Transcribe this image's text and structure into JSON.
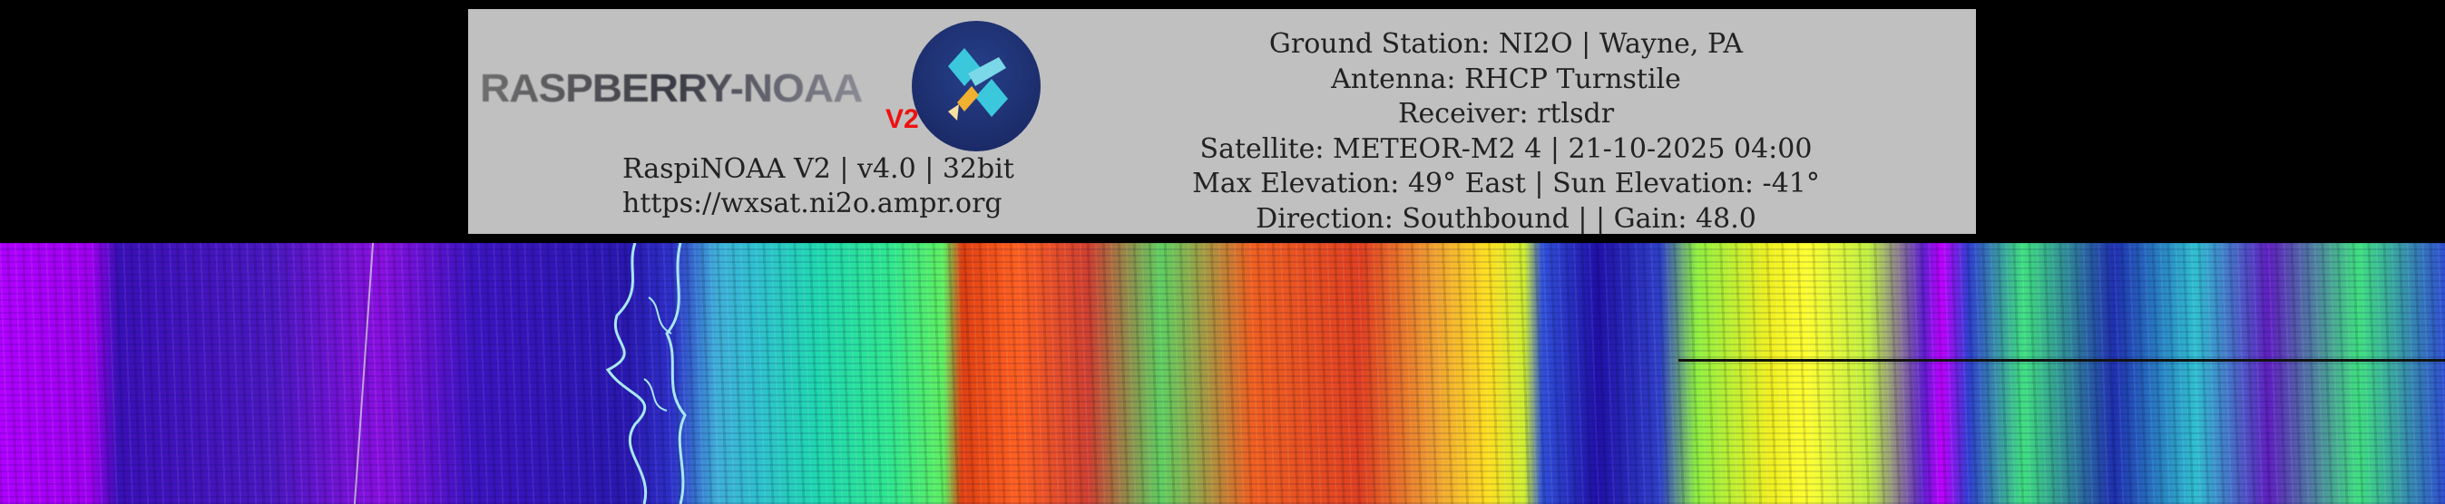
{
  "logo": {
    "text": "RASPBERRY-NOAA",
    "badge": "V2"
  },
  "software": {
    "version_line": "RaspiNOAA V2 | v4.0 | 32bit",
    "url": "https://wxsat.ni2o.ampr.org"
  },
  "pass_info": {
    "ground_station": "Ground Station: NI2O | Wayne, PA",
    "antenna": "Antenna: RHCP Turnstile",
    "receiver": "Receiver: rtlsdr",
    "satellite": "Satellite: METEOR-M2 4 | 21-10-2025 04:00",
    "elevation": "Max Elevation: 49° East | Sun Elevation: -41°",
    "direction": "Direction: Southbound | | Gain: 48.0"
  }
}
